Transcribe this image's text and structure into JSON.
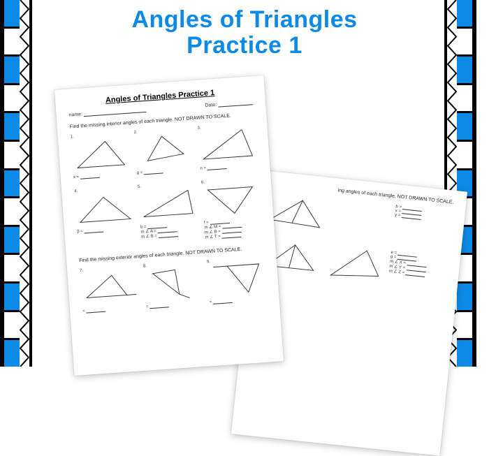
{
  "title": {
    "line1": "Angles of Triangles",
    "line2": "Practice 1",
    "color": "#0d8ae6"
  },
  "border": {
    "outer_black": "#000000",
    "checker_colors": [
      "#0d8ae6",
      "#ffffff"
    ],
    "checker_count": 13,
    "zigzag_color": "#000000",
    "inner_black": "#000000"
  },
  "worksheet1": {
    "title": "Angles of Triangles Practice 1",
    "name_label": "name:",
    "date_label": "Date:",
    "instruction1": "Find the missing interior angles of each triangle.  NOT DRAWN TO SCALE.",
    "instruction2": "Find the missing exterior angles of each triangle.  NOT DRAWN TO SCALE.",
    "problems_r1": [
      {
        "num": "1.",
        "label": "x ="
      },
      {
        "num": "2.",
        "label": "g ="
      },
      {
        "num": "3.",
        "label": "n ="
      }
    ],
    "problems_r2": [
      {
        "num": "4.",
        "labels": [
          "β ="
        ]
      },
      {
        "num": "5.",
        "labels": [
          "b =",
          "m ∠ A =",
          "m ∠ B ="
        ]
      },
      {
        "num": "6.",
        "labels": [
          "f =",
          "m ∠ M =",
          "m ∠ B =",
          "m ∠ T ="
        ]
      }
    ],
    "problems_r3": [
      {
        "num": "7.",
        "label": "="
      },
      {
        "num": "8.",
        "label": "="
      },
      {
        "num": "9.",
        "label": "="
      }
    ]
  },
  "worksheet2": {
    "instruction": "ing angles of each triangle.  NOT DRAWN TO SCALE.",
    "right_block": [
      "b =",
      "x =",
      "y ="
    ],
    "bottom_block": [
      "e =",
      "g =",
      "m ∠ X =",
      "m ∠ Y =",
      "m ∠ Z ="
    ]
  },
  "triangle_stroke": "#333333"
}
